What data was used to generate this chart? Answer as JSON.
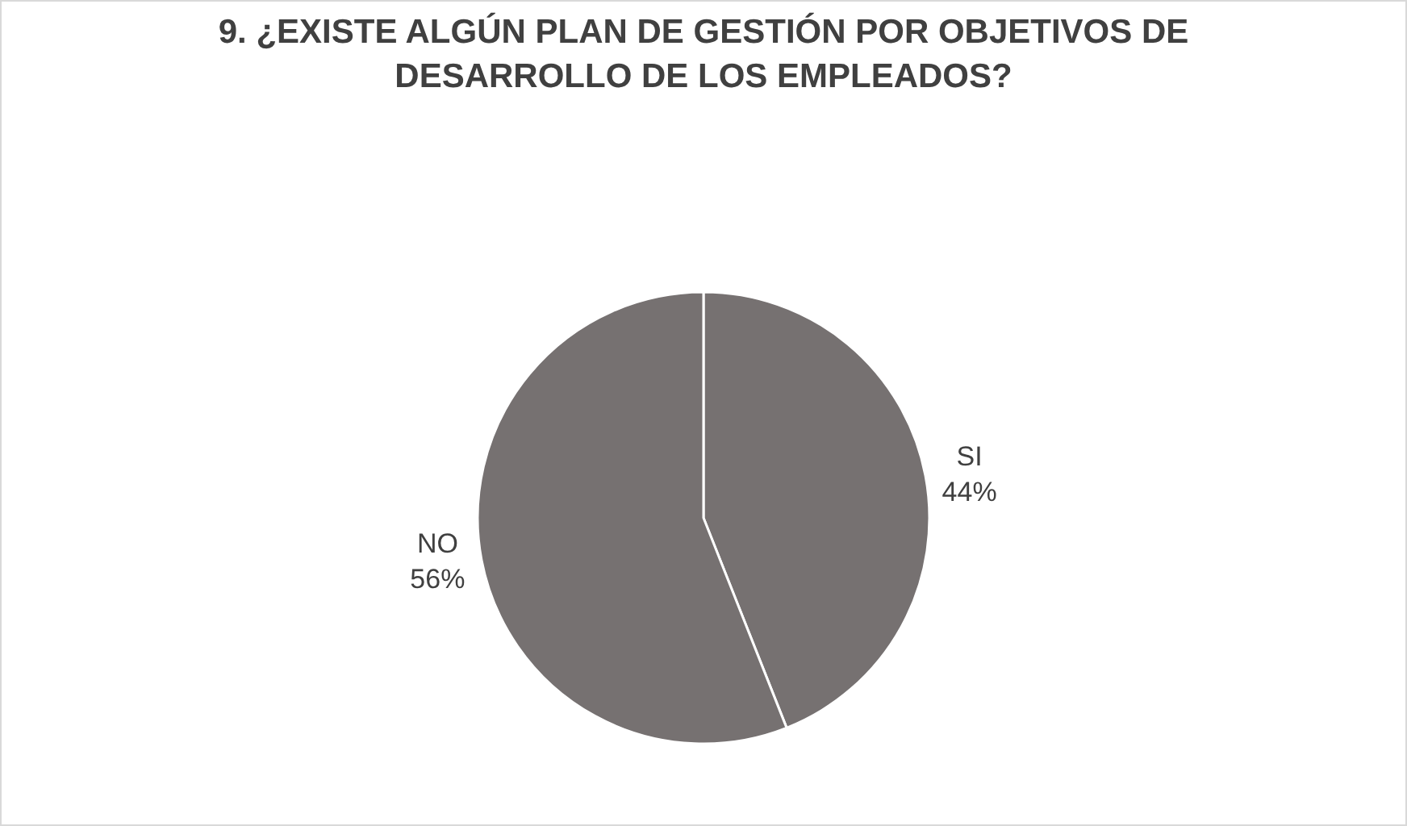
{
  "chart_data": {
    "type": "pie",
    "title": "9. ¿EXISTE ALGÚN PLAN DE GESTIÓN POR OBJETIVOS DE DESARROLLO DE LOS EMPLEADOS?",
    "categories": [
      "SI",
      "NO"
    ],
    "values": [
      44,
      56
    ],
    "value_labels": [
      "44%",
      "56%"
    ],
    "colors": [
      "#767171",
      "#767171"
    ],
    "legend": false
  }
}
